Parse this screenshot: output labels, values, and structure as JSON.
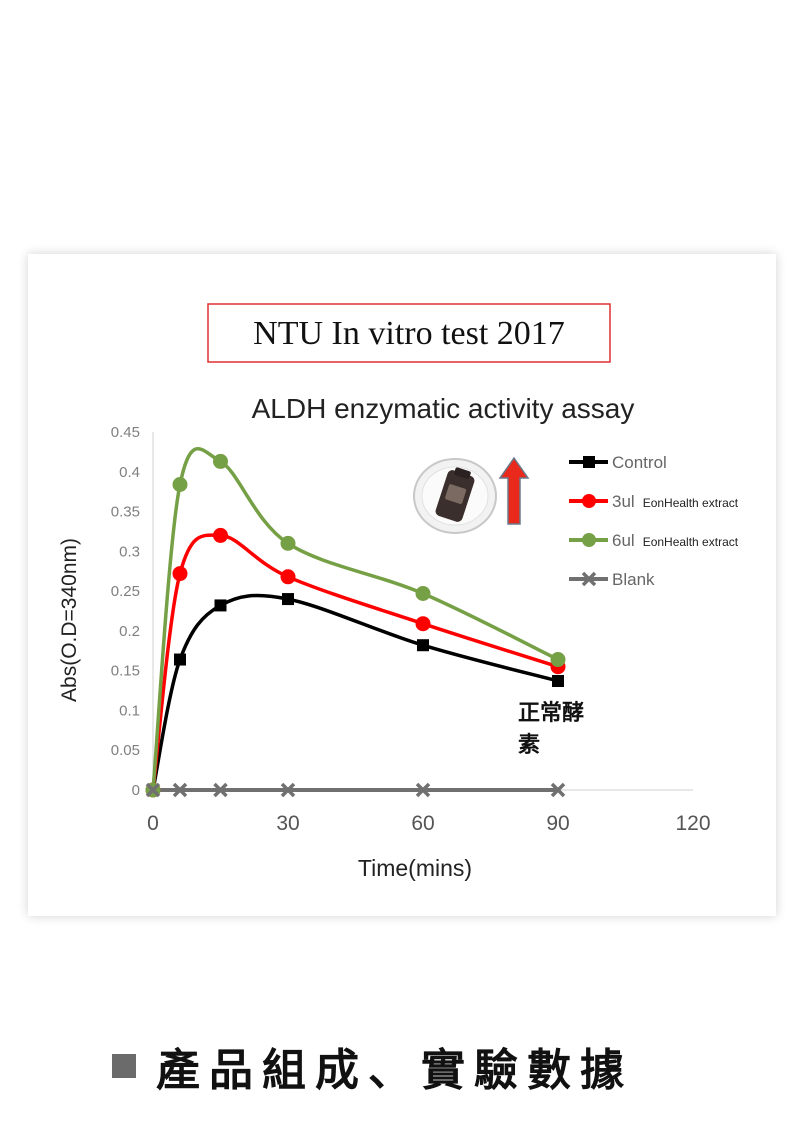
{
  "caption": "NTU In vitro test 2017",
  "annotation": "正常酵\n素",
  "footer": {
    "text": "產品組成、實驗數據"
  },
  "icons": [
    "product-bottle-icon",
    "up-arrow-icon"
  ],
  "chart_data": {
    "type": "line",
    "title": "ALDH enzymatic activity assay",
    "xlabel": "Time(mins)",
    "ylabel": "Abs(O.D=340nm)",
    "xlim": [
      0,
      120
    ],
    "ylim": [
      0,
      0.45
    ],
    "xticks": [
      0,
      30,
      60,
      90,
      120
    ],
    "yticks": [
      0,
      0.05,
      0.1,
      0.15,
      0.2,
      0.25,
      0.3,
      0.35,
      0.4,
      0.45
    ],
    "ytick_labels": [
      "0",
      "0.05",
      "0.1",
      "0.15",
      "0.2",
      "0.25",
      "0.3",
      "0.35",
      "0.4",
      "0.45"
    ],
    "grid": false,
    "legend_position": "top-right",
    "x": [
      0,
      6,
      15,
      30,
      60,
      90
    ],
    "series": [
      {
        "name": "Control",
        "suffix": "",
        "color": "#000000",
        "marker": "square",
        "values": [
          0,
          0.164,
          0.232,
          0.24,
          0.182,
          0.137
        ]
      },
      {
        "name": "3ul",
        "suffix": "EonHealth extract",
        "color": "#ff0000",
        "marker": "circle",
        "values": [
          0,
          0.272,
          0.32,
          0.268,
          0.209,
          0.155
        ]
      },
      {
        "name": "6ul",
        "suffix": "EonHealth extract",
        "color": "#76a045",
        "marker": "circle",
        "values": [
          0,
          0.384,
          0.413,
          0.31,
          0.247,
          0.164
        ]
      },
      {
        "name": "Blank",
        "suffix": "",
        "color": "#707070",
        "marker": "x",
        "values": [
          0,
          0,
          0,
          0,
          0,
          0
        ]
      }
    ]
  }
}
